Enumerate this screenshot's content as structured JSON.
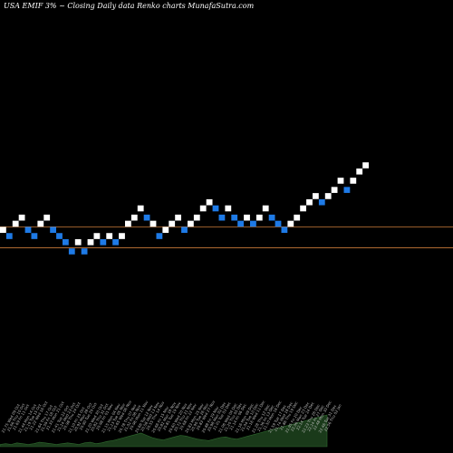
{
  "header": {
    "symbol": "USA EMIF",
    "change": "3% ~",
    "description": "Closing Daily data",
    "chart_kind": "Renko",
    "suffix": "charts MunafaSutra.com"
  },
  "colors": {
    "up_brick": "#ffffff",
    "down_brick": "#1e7ae6",
    "ref_line": "#c87a38",
    "volume": "#1a3a1a",
    "volume_edge": "#2f6a2f"
  },
  "chart_data": {
    "type": "renko",
    "title": "",
    "y_min": 18.7,
    "y_max": 24.3,
    "brick_size": 0.25,
    "reference_levels": [
      21.2,
      20.86
    ],
    "bricks": [
      {
        "i": 0,
        "close": 21.15,
        "dir": "up"
      },
      {
        "i": 1,
        "close": 21.05,
        "dir": "down"
      },
      {
        "i": 2,
        "close": 21.25,
        "dir": "up"
      },
      {
        "i": 3,
        "close": 21.35,
        "dir": "up"
      },
      {
        "i": 4,
        "close": 21.15,
        "dir": "down"
      },
      {
        "i": 5,
        "close": 21.05,
        "dir": "down"
      },
      {
        "i": 6,
        "close": 21.25,
        "dir": "up"
      },
      {
        "i": 7,
        "close": 21.35,
        "dir": "up"
      },
      {
        "i": 8,
        "close": 21.15,
        "dir": "down"
      },
      {
        "i": 9,
        "close": 21.05,
        "dir": "down"
      },
      {
        "i": 10,
        "close": 20.95,
        "dir": "down"
      },
      {
        "i": 11,
        "close": 20.8,
        "dir": "down"
      },
      {
        "i": 12,
        "close": 20.95,
        "dir": "up"
      },
      {
        "i": 13,
        "close": 20.8,
        "dir": "down"
      },
      {
        "i": 14,
        "close": 20.95,
        "dir": "up"
      },
      {
        "i": 15,
        "close": 21.05,
        "dir": "up"
      },
      {
        "i": 16,
        "close": 20.95,
        "dir": "down"
      },
      {
        "i": 17,
        "close": 21.05,
        "dir": "up"
      },
      {
        "i": 18,
        "close": 20.95,
        "dir": "down"
      },
      {
        "i": 19,
        "close": 21.05,
        "dir": "up"
      },
      {
        "i": 20,
        "close": 21.25,
        "dir": "up"
      },
      {
        "i": 21,
        "close": 21.35,
        "dir": "up"
      },
      {
        "i": 22,
        "close": 21.5,
        "dir": "up"
      },
      {
        "i": 23,
        "close": 21.35,
        "dir": "down"
      },
      {
        "i": 24,
        "close": 21.25,
        "dir": "up"
      },
      {
        "i": 25,
        "close": 21.05,
        "dir": "down"
      },
      {
        "i": 26,
        "close": 21.15,
        "dir": "up"
      },
      {
        "i": 27,
        "close": 21.25,
        "dir": "up"
      },
      {
        "i": 28,
        "close": 21.35,
        "dir": "up"
      },
      {
        "i": 29,
        "close": 21.15,
        "dir": "down"
      },
      {
        "i": 30,
        "close": 21.25,
        "dir": "up"
      },
      {
        "i": 31,
        "close": 21.35,
        "dir": "up"
      },
      {
        "i": 32,
        "close": 21.5,
        "dir": "up"
      },
      {
        "i": 33,
        "close": 21.6,
        "dir": "up"
      },
      {
        "i": 34,
        "close": 21.5,
        "dir": "down"
      },
      {
        "i": 35,
        "close": 21.35,
        "dir": "down"
      },
      {
        "i": 36,
        "close": 21.5,
        "dir": "up"
      },
      {
        "i": 37,
        "close": 21.35,
        "dir": "down"
      },
      {
        "i": 38,
        "close": 21.25,
        "dir": "down"
      },
      {
        "i": 39,
        "close": 21.35,
        "dir": "up"
      },
      {
        "i": 40,
        "close": 21.25,
        "dir": "down"
      },
      {
        "i": 41,
        "close": 21.35,
        "dir": "up"
      },
      {
        "i": 42,
        "close": 21.5,
        "dir": "up"
      },
      {
        "i": 43,
        "close": 21.35,
        "dir": "down"
      },
      {
        "i": 44,
        "close": 21.25,
        "dir": "down"
      },
      {
        "i": 45,
        "close": 21.15,
        "dir": "down"
      },
      {
        "i": 46,
        "close": 21.25,
        "dir": "up"
      },
      {
        "i": 47,
        "close": 21.35,
        "dir": "up"
      },
      {
        "i": 48,
        "close": 21.5,
        "dir": "up"
      },
      {
        "i": 49,
        "close": 21.6,
        "dir": "up"
      },
      {
        "i": 50,
        "close": 21.7,
        "dir": "up"
      },
      {
        "i": 51,
        "close": 21.6,
        "dir": "down"
      },
      {
        "i": 52,
        "close": 21.7,
        "dir": "up"
      },
      {
        "i": 53,
        "close": 21.8,
        "dir": "up"
      },
      {
        "i": 54,
        "close": 21.95,
        "dir": "up"
      },
      {
        "i": 55,
        "close": 21.8,
        "dir": "down"
      },
      {
        "i": 56,
        "close": 21.95,
        "dir": "up"
      },
      {
        "i": 57,
        "close": 22.1,
        "dir": "up"
      },
      {
        "i": 58,
        "close": 22.2,
        "dir": "up"
      }
    ],
    "volume": [
      3,
      4,
      3,
      5,
      4,
      3,
      4,
      6,
      5,
      4,
      3,
      4,
      5,
      4,
      3,
      5,
      6,
      4,
      5,
      7,
      8,
      10,
      12,
      14,
      16,
      18,
      15,
      12,
      10,
      9,
      11,
      13,
      15,
      14,
      12,
      10,
      9,
      8,
      10,
      12,
      13,
      11,
      10,
      12,
      14,
      16,
      18,
      20,
      22,
      24,
      26,
      28,
      30,
      32,
      34,
      36,
      38,
      40,
      42
    ],
    "volume_max": 60,
    "x_labels": [
      "21.75 Wed 09 Oct",
      "21.66 Thu 10 Oct",
      "21.69 Fri 11 Oct",
      "21.44 Mon 14 Oct",
      "21.19 Tue 15 Oct",
      "21.22 Wed 16 Oct",
      "21.64 Thu 17 Oct",
      "21.59 Fri 18 Oct",
      "21.33 Mon 21 Oct",
      "21.41 Tue 22 Oct",
      "21.24 Wed 23 Oct",
      "20.98 Thu 24 Oct",
      "21.10 Fri 25 Oct",
      "20.92 Mon 28 Oct",
      "20.90 Tue 29 Oct",
      "21.20 Wed 30 Oct",
      "20.82 Thu 31 Oct",
      "20.98 Fri 01 Nov",
      "21.15 Mon 04 Nov",
      "21.23 Tue 05 Nov",
      "20.65 Wed 06 Nov",
      "20.78 Thu 07 Nov",
      "21.02 Fri 08 Nov",
      "20.96 Mon 11 Nov",
      "20.66 Tue 12 Nov",
      "20.58 Wed 13 Nov",
      "20.55 Thu 14 Nov",
      "20.66 Fri 15 Nov",
      "20.82 Mon 18 Nov",
      "20.81 Tue 19 Nov",
      "20.60 Wed 20 Nov",
      "20.72 Thu 21 Nov",
      "20.68 Fri 22 Nov",
      "20.83 Mon 25 Nov",
      "20.90 Tue 26 Nov",
      "20.83 Wed 27 Nov",
      "20.88 Fri 29 Nov",
      "20.98 Mon 02 Dec",
      "21.01 Tue 03 Dec",
      "21.06 Wed 04 Dec",
      "21.20 Thu 05 Dec",
      "21.14 Fri 06 Dec",
      "21.16 Mon 09 Dec",
      "21.04 Tue 10 Dec",
      "21.16 Wed 11 Dec",
      "21.28 Thu 12 Dec",
      "21.36 Fri 13 Dec",
      "21.50 Mon 16 Dec",
      "21.59 Tue 17 Dec",
      "21.74 Wed 18 Dec",
      "21.86 Thu 19 Dec",
      "21.95 Fri 20 Dec",
      "22.06 Mon 23 Dec",
      "22.14 Tue 24 Dec",
      "22.23 Thu 26 Dec",
      "22.24 Fri 27 Dec",
      "22.48 Mon 30 Dec",
      "22.46 Tue 31 Dec",
      "22.56 Thu 02 Jan"
    ]
  }
}
